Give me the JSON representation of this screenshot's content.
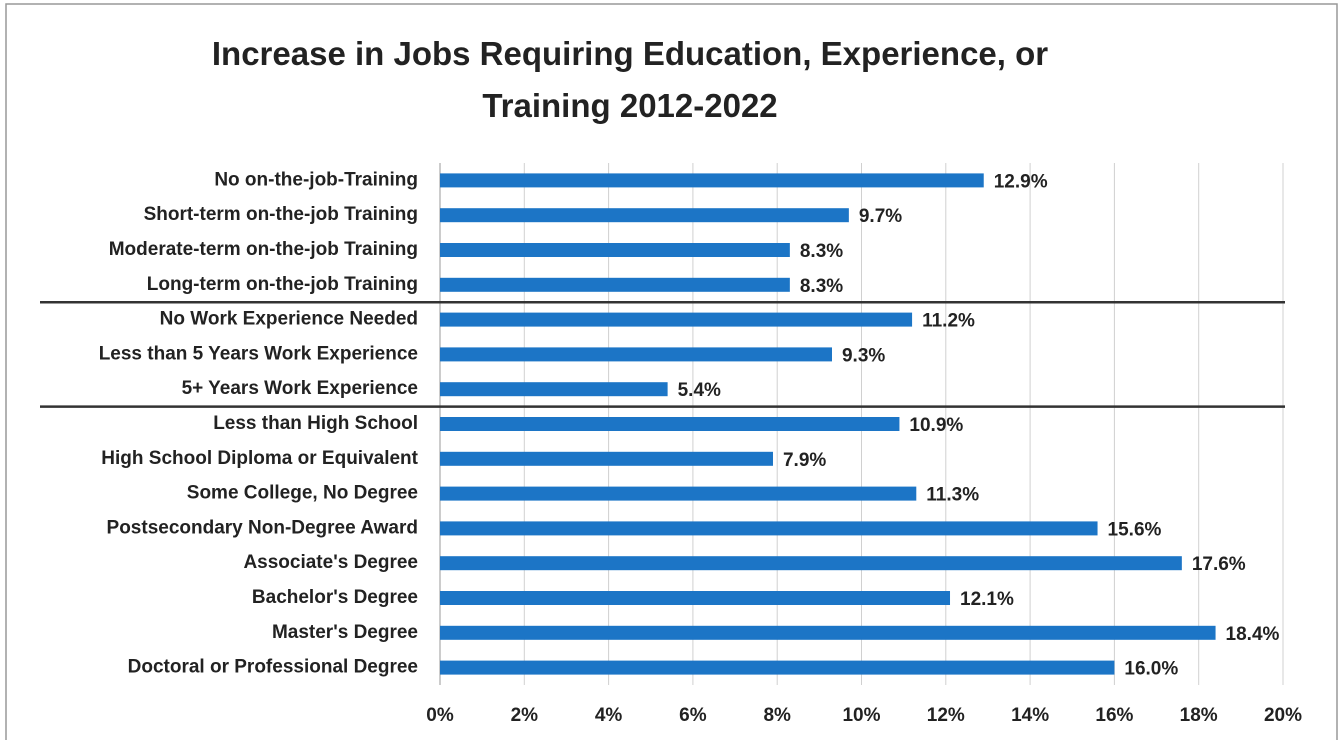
{
  "chart_data": {
    "type": "barh",
    "title": "Increase in Jobs Requiring Education, Experience, or Training 2012-2022",
    "categories": [
      "No on-the-job-Training",
      "Short-term on-the-job Training",
      "Moderate-term on-the-job Training",
      "Long-term on-the-job Training",
      "No Work Experience Needed",
      "Less than 5 Years Work Experience",
      "5+ Years Work Experience",
      "Less than High School",
      "High School Diploma or Equivalent",
      "Some College, No Degree",
      "Postsecondary Non-Degree Award",
      "Associate's Degree",
      "Bachelor's Degree",
      "Master's Degree",
      "Doctoral or Professional Degree"
    ],
    "values": [
      12.9,
      9.7,
      8.3,
      8.3,
      11.2,
      9.3,
      5.4,
      10.9,
      7.9,
      11.3,
      15.6,
      17.6,
      12.1,
      18.4,
      16.0
    ],
    "value_labels": [
      "12.9%",
      "9.7%",
      "8.3%",
      "8.3%",
      "11.2%",
      "9.3%",
      "5.4%",
      "10.9%",
      "7.9%",
      "11.3%",
      "15.6%",
      "17.6%",
      "12.1%",
      "18.4%",
      "16.0%"
    ],
    "color": "#1c75c6",
    "xlim": [
      0,
      20
    ],
    "xticks": [
      {
        "value": 0,
        "label": "0%"
      },
      {
        "value": 2,
        "label": "2%"
      },
      {
        "value": 4,
        "label": "4%"
      },
      {
        "value": 6,
        "label": "6%"
      },
      {
        "value": 8,
        "label": "8%"
      },
      {
        "value": 10,
        "label": "10%"
      },
      {
        "value": 12,
        "label": "12%"
      },
      {
        "value": 14,
        "label": "14%"
      },
      {
        "value": 16,
        "label": "16%"
      },
      {
        "value": 18,
        "label": "18%"
      },
      {
        "value": 20,
        "label": "20%"
      }
    ],
    "grid": true
  }
}
